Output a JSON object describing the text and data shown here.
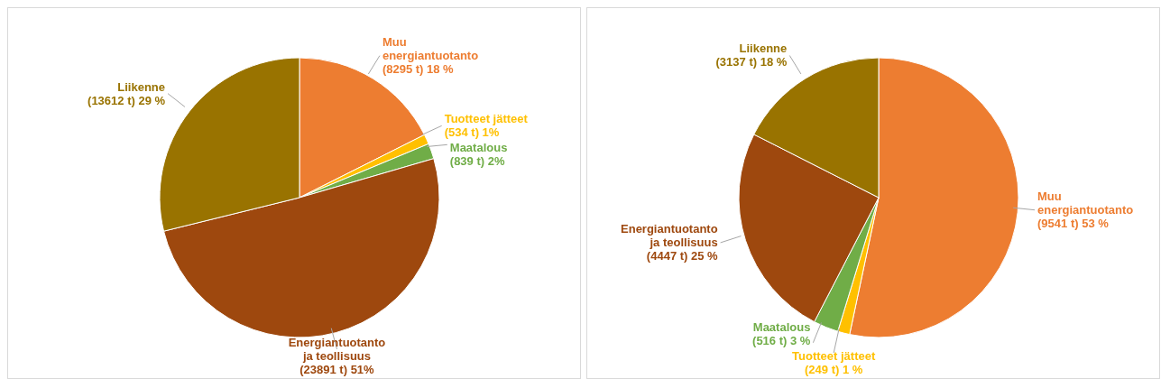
{
  "chart_data": [
    {
      "type": "pie",
      "categories": [
        "Muu energiantuotanto",
        "Tuotteet jätteet",
        "Maatalous",
        "Energiantuotanto ja teollisuus",
        "Liikenne"
      ],
      "values": [
        8295,
        534,
        839,
        23891,
        13612
      ],
      "colors": [
        "#ed7d31",
        "#ffc000",
        "#70ad47",
        "#9e480e",
        "#997300"
      ],
      "value_labels": [
        "(8295 t) 18 %",
        "(534 t) 1%",
        "(839 t) 2%",
        "(23891 t) 51%",
        "(13612 t) 29 %"
      ]
    },
    {
      "type": "pie",
      "categories": [
        "Muu energiantuotanto",
        "Tuotteet jätteet",
        "Maatalous",
        "Energiantuotanto ja teollisuus",
        "Liikenne"
      ],
      "values": [
        9541,
        249,
        516,
        4447,
        3137
      ],
      "colors": [
        "#ed7d31",
        "#ffc000",
        "#70ad47",
        "#9e480e",
        "#997300"
      ],
      "value_labels": [
        "(9541 t) 53 %",
        "(249 t) 1 %",
        "(516 t) 3 %",
        "(4447 t) 25 %",
        "(3137 t) 18 %"
      ]
    }
  ]
}
